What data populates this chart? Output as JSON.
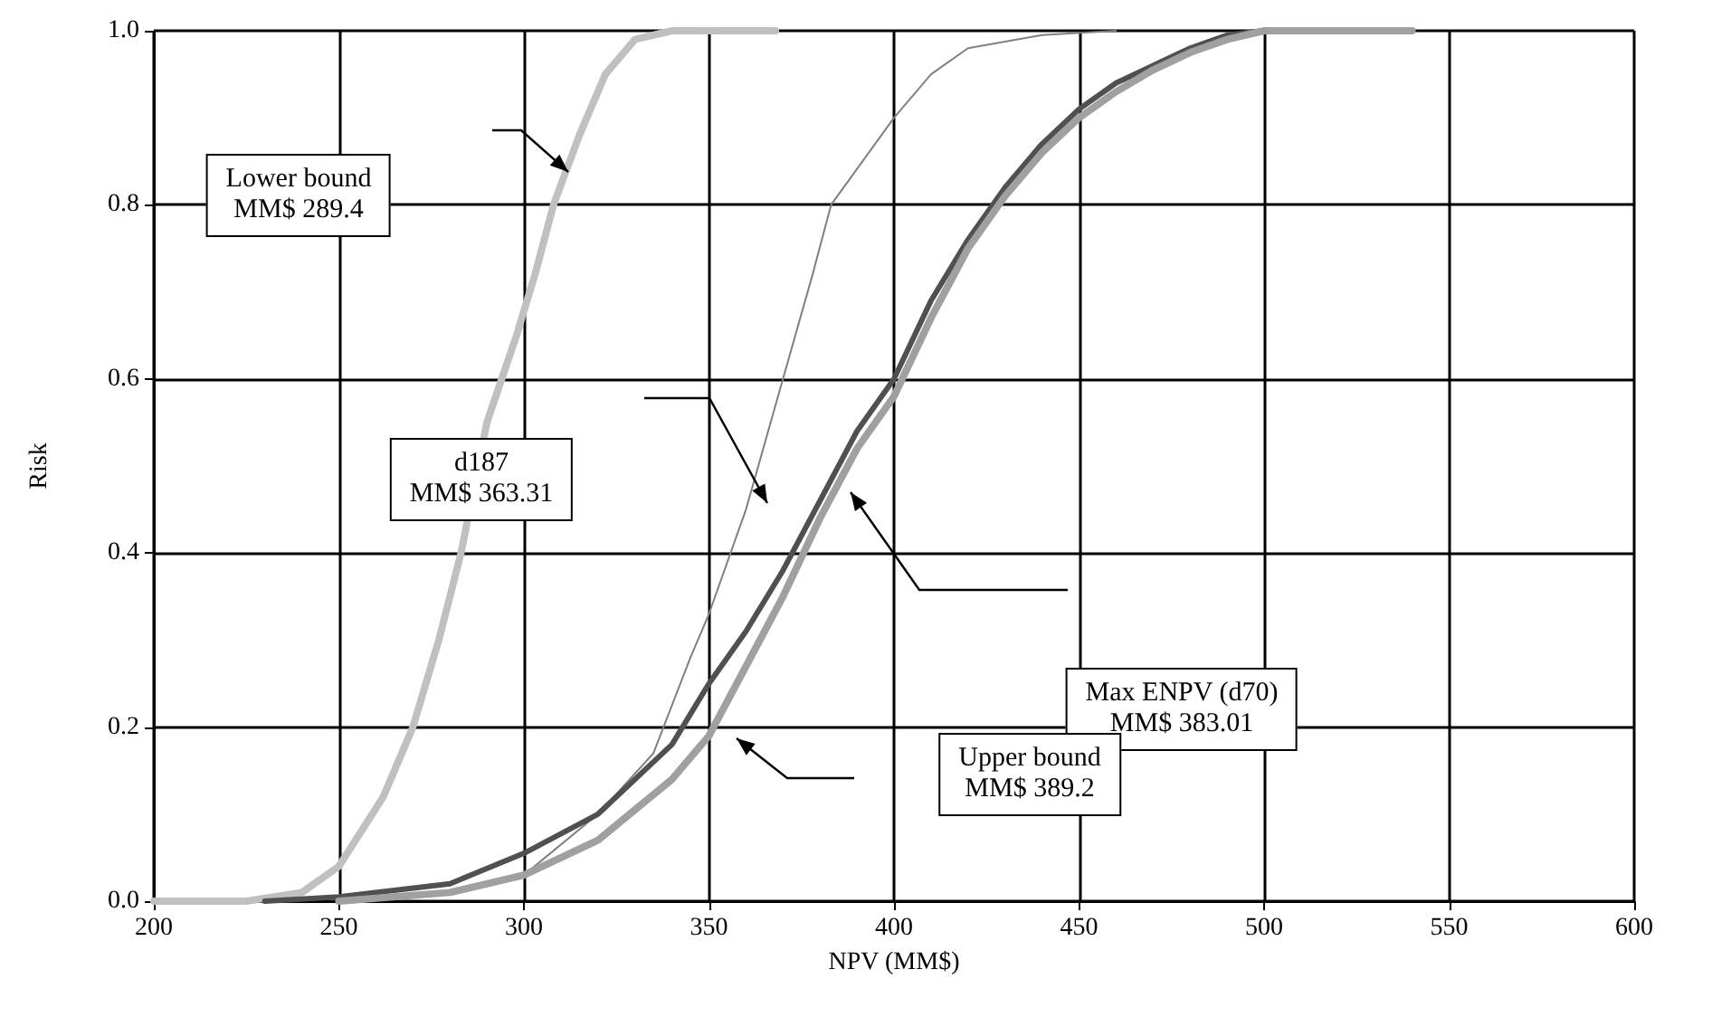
{
  "chart_data": {
    "type": "line",
    "xlabel": "NPV (MM$)",
    "ylabel": "Risk",
    "xlim": [
      200,
      600
    ],
    "xticks": [
      200,
      250,
      300,
      350,
      400,
      450,
      500,
      550,
      600
    ],
    "ylim": [
      0,
      1
    ],
    "yticks": [
      {
        "value": 0,
        "label": "0.0"
      },
      0.2,
      0.4,
      0.6,
      0.8,
      {
        "value": 1,
        "label": "1.0"
      }
    ],
    "grid": true,
    "marker": "none",
    "line_style": "solid",
    "series": [
      {
        "color": "#c0c0c0",
        "x": [
          200,
          225,
          240,
          250,
          262,
          270,
          277,
          283,
          290,
          298,
          303,
          308,
          315,
          322,
          330,
          340,
          368
        ],
        "values": [
          0,
          0,
          0.01,
          0.04,
          0.12,
          0.2,
          0.3,
          0.4,
          0.55,
          0.65,
          0.72,
          0.8,
          0.88,
          0.95,
          0.99,
          1,
          1
        ]
      },
      {
        "color": "#808080",
        "x": [
          250,
          280,
          300,
          320,
          335,
          345,
          350,
          360,
          370,
          378,
          383,
          400,
          410,
          420,
          440,
          460
        ],
        "values": [
          0,
          0.01,
          0.03,
          0.1,
          0.17,
          0.28,
          0.33,
          0.45,
          0.6,
          0.72,
          0.8,
          0.9,
          0.95,
          0.98,
          0.995,
          1
        ]
      },
      {
        "color": "#505050",
        "x": [
          230,
          250,
          280,
          300,
          320,
          340,
          350,
          360,
          370,
          380,
          390,
          400,
          410,
          420,
          430,
          440,
          450,
          460,
          470,
          480,
          490,
          500
        ],
        "values": [
          0,
          0.005,
          0.02,
          0.055,
          0.1,
          0.18,
          0.25,
          0.31,
          0.38,
          0.46,
          0.54,
          0.6,
          0.69,
          0.76,
          0.82,
          0.87,
          0.91,
          0.94,
          0.96,
          0.98,
          0.995,
          1
        ]
      },
      {
        "color": "#a0a0a0",
        "x": [
          250,
          280,
          300,
          320,
          340,
          350,
          360,
          370,
          380,
          390,
          400,
          410,
          420,
          430,
          440,
          450,
          460,
          470,
          480,
          490,
          500,
          540
        ],
        "values": [
          0,
          0.01,
          0.03,
          0.07,
          0.14,
          0.19,
          0.27,
          0.35,
          0.44,
          0.52,
          0.58,
          0.67,
          0.75,
          0.81,
          0.86,
          0.9,
          0.93,
          0.955,
          0.975,
          0.99,
          1,
          1
        ]
      }
    ],
    "annotations": [
      "Lower bound\nMM$ 289.4",
      "d187\nMM$ 363.31",
      "Max ENPV (d70)\nMM$ 383.01",
      "Upper bound\nMM$ 389.2"
    ]
  }
}
